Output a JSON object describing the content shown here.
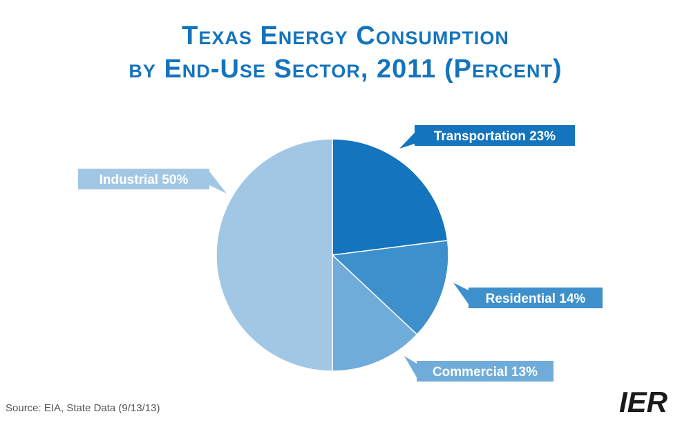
{
  "chart_data": {
    "type": "pie",
    "title_line1": "Texas Energy Consumption",
    "title_line2": "by End-Use Sector, 2011 (Percent)",
    "slices": [
      {
        "label": "Transportation",
        "value": 23,
        "color": "#1474bd",
        "text": "Transportation 23%"
      },
      {
        "label": "Residential",
        "value": 14,
        "color": "#3e90cc",
        "text": "Residential 14%"
      },
      {
        "label": "Commercial",
        "value": 13,
        "color": "#70acd9",
        "text": "Commercial 13%"
      },
      {
        "label": "Industrial",
        "value": 50,
        "color": "#a2c7e4",
        "text": "Industrial 50%"
      }
    ],
    "start_angle": "12 o'clock",
    "direction": "clockwise"
  },
  "source": "Source: EIA, State Data (9/13/13)",
  "logo": {
    "text": "IER",
    "color": "#1a1a1a",
    "accent": "#1474bd"
  }
}
